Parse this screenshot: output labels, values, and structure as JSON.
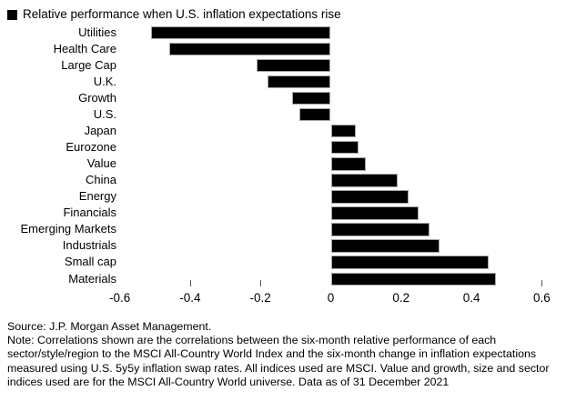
{
  "legend": {
    "swatch_color": "#000000",
    "title": "Relative performance when U.S. inflation expectations rise"
  },
  "chart_data": {
    "type": "bar",
    "orientation": "horizontal",
    "title": "Relative performance when U.S. inflation expectations rise",
    "xlabel": "",
    "ylabel": "",
    "categories": [
      "Utilities",
      "Health Care",
      "Large Cap",
      "U.K.",
      "Growth",
      "U.S.",
      "Japan",
      "Eurozone",
      "Value",
      "China",
      "Energy",
      "Financials",
      "Emerging Markets",
      "Industrials",
      "Small cap",
      "Materials"
    ],
    "values": [
      -0.51,
      -0.46,
      -0.21,
      -0.18,
      -0.11,
      -0.09,
      0.07,
      0.08,
      0.1,
      0.19,
      0.22,
      0.25,
      0.28,
      0.31,
      0.45,
      0.47
    ],
    "xlim": [
      -0.6,
      0.6
    ],
    "axis_tick_labels": [
      "-0.6",
      "-0.4",
      "-0.2",
      "0",
      "0.2",
      "0.4",
      "0.6"
    ],
    "axis_tick_values": [
      -0.6,
      -0.4,
      -0.2,
      0,
      0.2,
      0.4,
      0.6
    ],
    "visible_tick_marks": [
      -0.4,
      -0.2,
      0.6
    ],
    "bar_color": "#000000",
    "grid": false,
    "legend_position": "top-left"
  },
  "footer": {
    "source": "Source: J.P. Morgan Asset Management.",
    "note": "Note: Correlations shown are the correlations between the six-month relative performance of each sector/style/region to the MSCI All-Country World Index and the six-month change in inflation expectations measured using U.S. 5y5y inflation swap rates. All indices used are MSCI. Value and growth, size and sector indices used are for the MSCI All-Country World universe. Data as of 31 December 2021"
  }
}
